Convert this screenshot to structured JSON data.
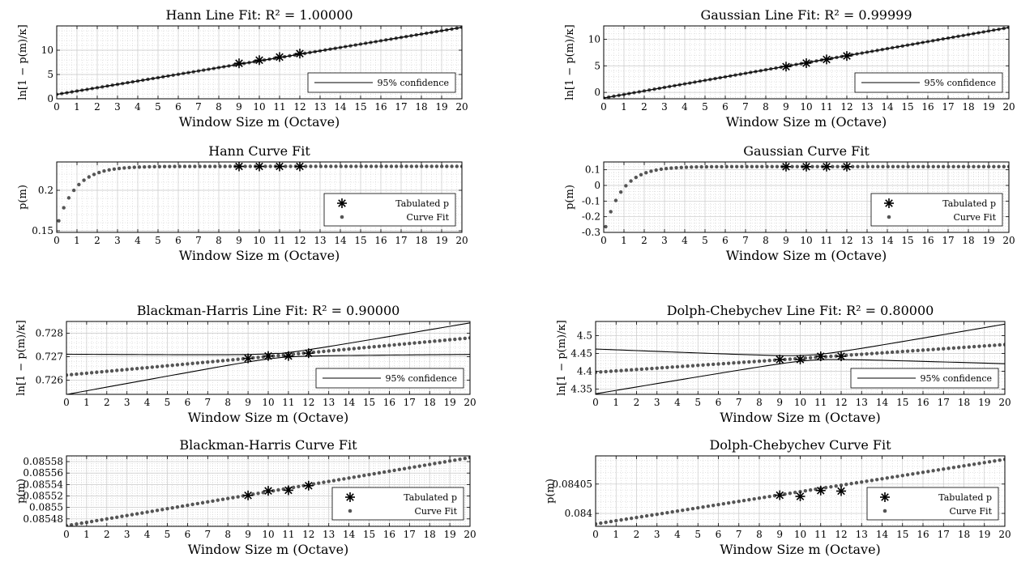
{
  "chart_data": [
    {
      "type": "line",
      "title": "Hann Line Fit: R² = 1.00000",
      "xlabel": "Window Size m (Octave)",
      "ylabel": "ln[1 − p(m)/κ]",
      "xlim": [
        0,
        20
      ],
      "ylim": [
        0,
        15
      ],
      "xticks": [
        0,
        1,
        2,
        3,
        4,
        5,
        6,
        7,
        8,
        9,
        10,
        11,
        12,
        13,
        14,
        15,
        16,
        17,
        18,
        19,
        20
      ],
      "yticks": [
        0,
        5,
        10
      ],
      "ytick_labels": [
        "0",
        "5",
        "10"
      ],
      "grid": true,
      "legend": {
        "position": "bottom-right",
        "entries": [
          "95% confidence"
        ]
      },
      "series": [
        {
          "role": "fit_dots",
          "x_start": 0,
          "x_end": 20,
          "y_start": 0.9,
          "y_end": 14.7
        },
        {
          "role": "conf_upper",
          "x_start": 0,
          "x_end": 20,
          "y_start": 0.9,
          "y_end": 14.7
        },
        {
          "role": "conf_lower",
          "x_start": 0,
          "x_end": 20,
          "y_start": 0.9,
          "y_end": 14.7
        },
        {
          "role": "tabulated",
          "x": [
            9,
            10,
            11,
            12
          ],
          "y": [
            7.3,
            7.95,
            8.6,
            9.3
          ]
        }
      ]
    },
    {
      "type": "line",
      "title": "Hann Curve Fit",
      "xlabel": "Window Size m (Octave)",
      "ylabel": "p(m)",
      "xlim": [
        0,
        20
      ],
      "ylim": [
        0.148,
        0.235
      ],
      "xticks": [
        0,
        1,
        2,
        3,
        4,
        5,
        6,
        7,
        8,
        9,
        10,
        11,
        12,
        13,
        14,
        15,
        16,
        17,
        18,
        19,
        20
      ],
      "yticks": [
        0.15,
        0.2
      ],
      "ytick_labels": [
        "0.15",
        "0.2"
      ],
      "grid": true,
      "legend": {
        "position": "bottom-right",
        "entries": [
          "Tabulated p",
          "Curve Fit"
        ]
      },
      "series": [
        {
          "role": "curve_dots",
          "x_start": 0.1,
          "x_end": 20,
          "form": "exp",
          "a": 0.2295,
          "b": 0.075,
          "k": 1.1
        },
        {
          "role": "tabulated",
          "x": [
            9,
            10,
            11,
            12
          ],
          "y": [
            0.2295,
            0.2295,
            0.2295,
            0.2295
          ]
        }
      ]
    },
    {
      "type": "line",
      "title": "Gaussian Line Fit: R² = 0.99999",
      "xlabel": "Window Size m (Octave)",
      "ylabel": "ln[1 − p(m)/κ]",
      "xlim": [
        0,
        20
      ],
      "ylim": [
        -1.2,
        12.5
      ],
      "xticks": [
        0,
        1,
        2,
        3,
        4,
        5,
        6,
        7,
        8,
        9,
        10,
        11,
        12,
        13,
        14,
        15,
        16,
        17,
        18,
        19,
        20
      ],
      "yticks": [
        0,
        5,
        10
      ],
      "ytick_labels": [
        "0",
        "5",
        "10"
      ],
      "grid": true,
      "legend": {
        "position": "bottom-right",
        "entries": [
          "95% confidence"
        ]
      },
      "series": [
        {
          "role": "fit_dots",
          "x_start": 0,
          "x_end": 20,
          "y_start": -1.05,
          "y_end": 12.2
        },
        {
          "role": "conf_upper",
          "x_start": 0,
          "x_end": 20,
          "y_start": -1.05,
          "y_end": 12.2
        },
        {
          "role": "conf_lower",
          "x_start": 0,
          "x_end": 20,
          "y_start": -1.05,
          "y_end": 12.2
        },
        {
          "role": "tabulated",
          "x": [
            9,
            10,
            11,
            12
          ],
          "y": [
            4.85,
            5.5,
            6.2,
            6.85
          ]
        }
      ]
    },
    {
      "type": "line",
      "title": "Gaussian Curve Fit",
      "xlabel": "Window Size m (Octave)",
      "ylabel": "p(m)",
      "xlim": [
        0,
        20
      ],
      "ylim": [
        -0.3,
        0.15
      ],
      "xticks": [
        0,
        1,
        2,
        3,
        4,
        5,
        6,
        7,
        8,
        9,
        10,
        11,
        12,
        13,
        14,
        15,
        16,
        17,
        18,
        19,
        20
      ],
      "yticks": [
        0.1,
        0,
        -0.1,
        -0.2,
        -0.3
      ],
      "ytick_labels": [
        "0.1",
        "0",
        "-0.1",
        "-0.2",
        "-0.3"
      ],
      "grid": true,
      "legend": {
        "position": "bottom-right",
        "entries": [
          "Tabulated p",
          "Curve Fit"
        ]
      },
      "series": [
        {
          "role": "curve_dots",
          "x_start": 0.1,
          "x_end": 20,
          "form": "exp",
          "a": 0.12,
          "b": 0.43,
          "k": 1.15
        },
        {
          "role": "tabulated",
          "x": [
            9,
            10,
            11,
            12
          ],
          "y": [
            0.12,
            0.12,
            0.12,
            0.12
          ]
        }
      ]
    },
    {
      "type": "line",
      "title": "Blackman-Harris Line Fit: R² = 0.90000",
      "xlabel": "Window Size m (Octave)",
      "ylabel": "ln[1 − p(m)/κ]",
      "xlim": [
        0,
        20
      ],
      "ylim": [
        0.7254,
        0.7285
      ],
      "xticks": [
        0,
        1,
        2,
        3,
        4,
        5,
        6,
        7,
        8,
        9,
        10,
        11,
        12,
        13,
        14,
        15,
        16,
        17,
        18,
        19,
        20
      ],
      "yticks": [
        0.726,
        0.727,
        0.728
      ],
      "ytick_labels": [
        "0.726",
        "0.727",
        "0.728"
      ],
      "grid": true,
      "legend": {
        "position": "bottom-right",
        "entries": [
          "95% confidence"
        ]
      },
      "series": [
        {
          "role": "fit_dots",
          "x_start": 0,
          "x_end": 20,
          "y_start": 0.72622,
          "y_end": 0.7278
        },
        {
          "role": "conf_upper",
          "x_start": 0,
          "x_end": 20,
          "y_start": 0.7271,
          "y_end": 0.7285
        },
        {
          "role": "conf_lower",
          "x_start": 0,
          "x_end": 20,
          "y_start": 0.7254,
          "y_end": 0.72703
        },
        {
          "role": "tabulated",
          "x": [
            9,
            10,
            11,
            12
          ],
          "y": [
            0.72693,
            0.72703,
            0.72703,
            0.72715
          ]
        }
      ]
    },
    {
      "type": "line",
      "title": "Blackman-Harris Curve Fit",
      "xlabel": "Window Size m (Octave)",
      "ylabel": "p(m)",
      "xlim": [
        0,
        20
      ],
      "ylim": [
        0.085467,
        0.08559
      ],
      "xticks": [
        0,
        1,
        2,
        3,
        4,
        5,
        6,
        7,
        8,
        9,
        10,
        11,
        12,
        13,
        14,
        15,
        16,
        17,
        18,
        19,
        20
      ],
      "yticks": [
        0.08548,
        0.0855,
        0.08552,
        0.08554,
        0.08556,
        0.08558
      ],
      "ytick_labels": [
        "0.08548",
        "0.0855",
        "0.08552",
        "0.08554",
        "0.08556",
        "0.08558"
      ],
      "grid": true,
      "legend": {
        "position": "bottom-right",
        "entries": [
          "Tabulated p",
          "Curve Fit"
        ]
      },
      "series": [
        {
          "role": "fit_dots",
          "x_start": 0,
          "x_end": 20,
          "y_start": 0.085468,
          "y_end": 0.085587
        },
        {
          "role": "tabulated",
          "x": [
            9,
            10,
            11,
            12
          ],
          "y": [
            0.085521,
            0.085529,
            0.08553,
            0.085538
          ]
        }
      ]
    },
    {
      "type": "line",
      "title": "Dolph-Chebychev Line Fit: R² = 0.80000",
      "xlabel": "Window Size m (Octave)",
      "ylabel": "ln[1 − p(m)/κ]",
      "xlim": [
        0,
        20
      ],
      "ylim": [
        4.335,
        4.54
      ],
      "xticks": [
        0,
        1,
        2,
        3,
        4,
        5,
        6,
        7,
        8,
        9,
        10,
        11,
        12,
        13,
        14,
        15,
        16,
        17,
        18,
        19,
        20
      ],
      "yticks": [
        4.35,
        4.4,
        4.45,
        4.5
      ],
      "ytick_labels": [
        "4.35",
        "4.4",
        "4.45",
        "4.5"
      ],
      "grid": true,
      "legend": {
        "position": "bottom-right",
        "entries": [
          "95% confidence"
        ]
      },
      "series": [
        {
          "role": "fit_dots",
          "x_start": 0,
          "x_end": 20,
          "y_start": 4.397,
          "y_end": 4.475
        },
        {
          "role": "conf_upper",
          "x_start": 0,
          "x_end": 20,
          "y_start": 4.462,
          "y_end": 4.538
        },
        {
          "role": "conf_lower",
          "x_start": 0,
          "x_end": 20,
          "y_start": 4.337,
          "y_end": 4.416
        },
        {
          "role": "tabulated",
          "x": [
            9,
            10,
            11,
            12
          ],
          "y": [
            4.433,
            4.433,
            4.442,
            4.442
          ]
        }
      ]
    },
    {
      "type": "line",
      "title": "Dolph-Chebychev Curve Fit",
      "xlabel": "Window Size m (Octave)",
      "ylabel": "p(m)",
      "xlim": [
        0,
        20
      ],
      "ylim": [
        0.083978,
        0.084098
      ],
      "xticks": [
        0,
        1,
        2,
        3,
        4,
        5,
        6,
        7,
        8,
        9,
        10,
        11,
        12,
        13,
        14,
        15,
        16,
        17,
        18,
        19,
        20
      ],
      "yticks": [
        0.084,
        0.08405
      ],
      "ytick_labels": [
        "0.084",
        "0.08405"
      ],
      "grid": true,
      "legend": {
        "position": "bottom-right",
        "entries": [
          "Tabulated p",
          "Curve Fit"
        ]
      },
      "series": [
        {
          "role": "fit_dots",
          "x_start": 0,
          "x_end": 20,
          "y_start": 0.083982,
          "y_end": 0.084092
        },
        {
          "role": "tabulated",
          "x": [
            9,
            10,
            11,
            12
          ],
          "y": [
            0.084031,
            0.084029,
            0.084039,
            0.084038
          ]
        }
      ]
    }
  ],
  "style": {
    "dot_color": "#555555",
    "star_color": "#000000",
    "line_color": "#000000",
    "grid_color": "#c8c8c8"
  }
}
